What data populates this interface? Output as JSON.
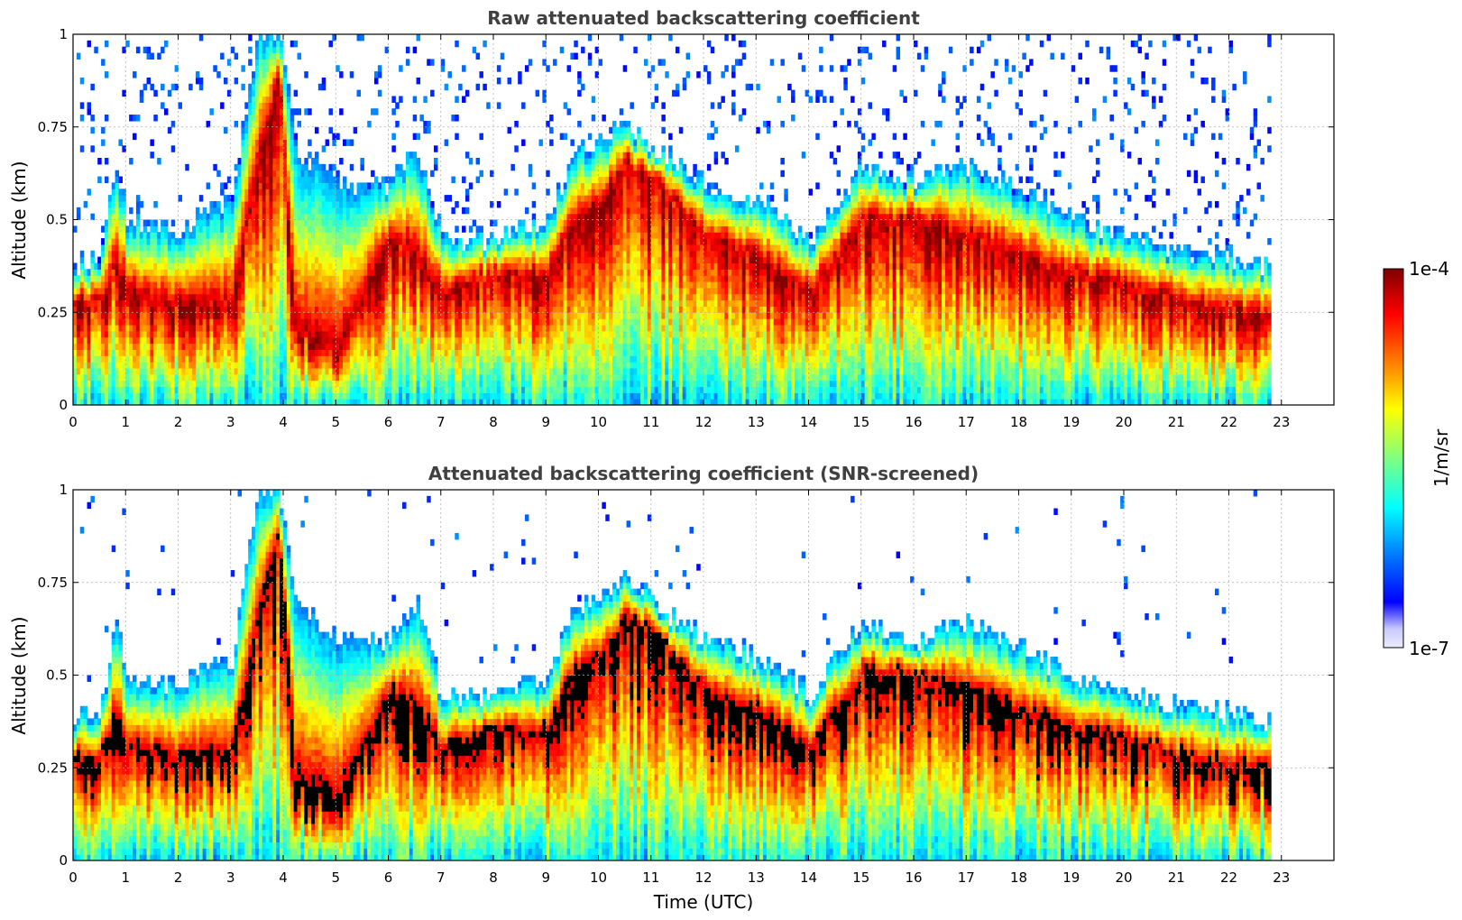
{
  "chart_data": [
    {
      "type": "heatmap",
      "title": "Raw attenuated backscattering coefficient",
      "xlabel": "",
      "ylabel": "Altitude (km)",
      "xlim": [
        0,
        24
      ],
      "ylim": [
        0,
        1
      ],
      "x_ticks": [
        "0",
        "1",
        "2",
        "3",
        "4",
        "5",
        "6",
        "7",
        "8",
        "9",
        "10",
        "11",
        "12",
        "13",
        "14",
        "15",
        "16",
        "17",
        "18",
        "19",
        "20",
        "21",
        "22",
        "23"
      ],
      "y_ticks": [
        "0",
        "0.25",
        "0.5",
        "0.75",
        "1"
      ],
      "grid": true,
      "data_end_hour": 22.8,
      "noise_level": "raw",
      "layer_profile": {
        "hours": [
          0,
          0.5,
          0.8,
          1,
          2,
          3,
          3.5,
          3.9,
          4.2,
          5,
          6,
          6.5,
          7,
          8,
          9,
          9.5,
          10,
          10.5,
          11,
          12,
          13,
          14,
          15,
          16,
          17,
          18,
          19,
          20,
          21,
          22,
          22.8
        ],
        "core_km": [
          0.28,
          0.27,
          0.38,
          0.3,
          0.27,
          0.28,
          0.65,
          0.9,
          0.2,
          0.15,
          0.45,
          0.4,
          0.3,
          0.35,
          0.35,
          0.5,
          0.55,
          0.65,
          0.62,
          0.45,
          0.4,
          0.3,
          0.5,
          0.5,
          0.45,
          0.4,
          0.35,
          0.32,
          0.28,
          0.25,
          0.25
        ],
        "top_km": [
          0.38,
          0.4,
          0.65,
          0.5,
          0.48,
          0.55,
          1.0,
          1.0,
          0.7,
          0.6,
          0.6,
          0.7,
          0.45,
          0.45,
          0.5,
          0.68,
          0.72,
          0.75,
          0.7,
          0.6,
          0.55,
          0.45,
          0.65,
          0.6,
          0.65,
          0.58,
          0.5,
          0.45,
          0.42,
          0.4,
          0.38
        ]
      }
    },
    {
      "type": "heatmap",
      "title": "Attenuated backscattering coefficient (SNR-screened)",
      "xlabel": "Time (UTC)",
      "ylabel": "Altitude (km)",
      "xlim": [
        0,
        24
      ],
      "ylim": [
        0,
        1
      ],
      "x_ticks": [
        "0",
        "1",
        "2",
        "3",
        "4",
        "5",
        "6",
        "7",
        "8",
        "9",
        "10",
        "11",
        "12",
        "13",
        "14",
        "15",
        "16",
        "17",
        "18",
        "19",
        "20",
        "21",
        "22",
        "23"
      ],
      "y_ticks": [
        "0",
        "0.25",
        "0.5",
        "0.75",
        "1"
      ],
      "grid": true,
      "data_end_hour": 22.8,
      "noise_level": "screened",
      "saturated_color": "#000000"
    }
  ],
  "colorbar": {
    "label": "1/m/sr",
    "max_label": "1e-4",
    "min_label": "1e-7",
    "colormap": "jet",
    "colors": [
      "#ececff",
      "#c8c8ff",
      "#0000ff",
      "#0080ff",
      "#00ffff",
      "#80ff80",
      "#ffff00",
      "#ff8000",
      "#ff0000",
      "#800000"
    ]
  }
}
